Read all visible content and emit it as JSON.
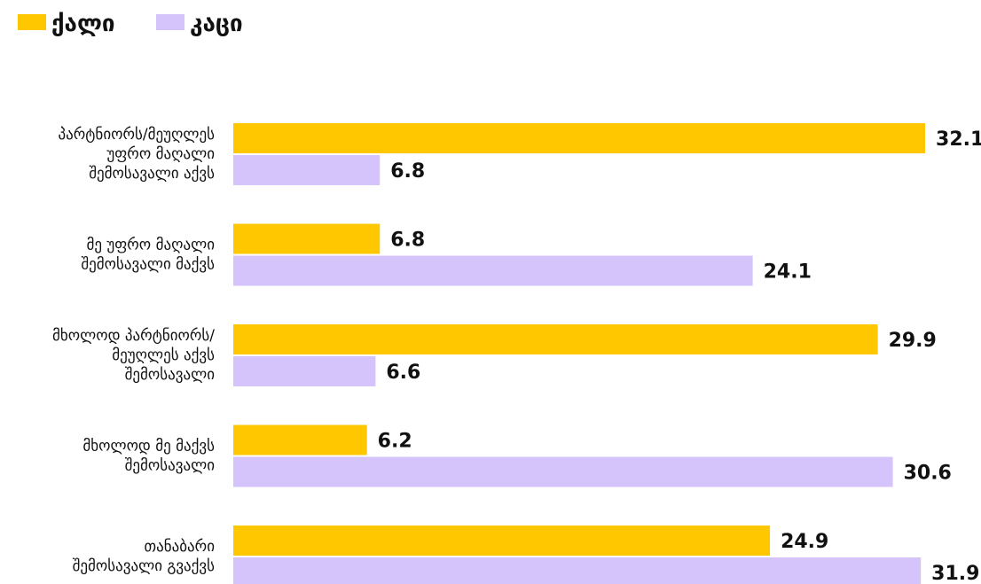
{
  "chart_data": {
    "type": "bar",
    "orientation": "horizontal",
    "title": "",
    "xlabel": "",
    "ylabel": "",
    "xlim": [
      0,
      33
    ],
    "grid": false,
    "legend_position": "top-left",
    "categories": [
      [
        "პარტნიორს/მეუღლეს",
        "უფრო მაღალი",
        "შემოსავალი აქვს"
      ],
      [
        "მე უფრო მაღალი",
        "შემოსავალი მაქვს"
      ],
      [
        "მხოლოდ პარტნიორს/",
        "მეუღლეს აქვს",
        "შემოსავალი"
      ],
      [
        "მხოლოდ მე მაქვს",
        "შემოსავალი"
      ],
      [
        "თანაბარი",
        "შემოსავალი გვაქვს"
      ]
    ],
    "series": [
      {
        "name": "ქალი",
        "color": "#FFC700",
        "values": [
          32.1,
          6.8,
          29.9,
          6.2,
          24.9
        ],
        "labels": [
          "32.1",
          "6.8",
          "29.9",
          "6.2",
          "24.9"
        ]
      },
      {
        "name": "კაცი",
        "color": "#D4C4FB",
        "values": [
          6.8,
          24.1,
          6.6,
          30.6,
          31.9
        ],
        "labels": [
          "6.8",
          "24.1",
          "6.6",
          "30.6",
          "31.9"
        ]
      }
    ]
  }
}
